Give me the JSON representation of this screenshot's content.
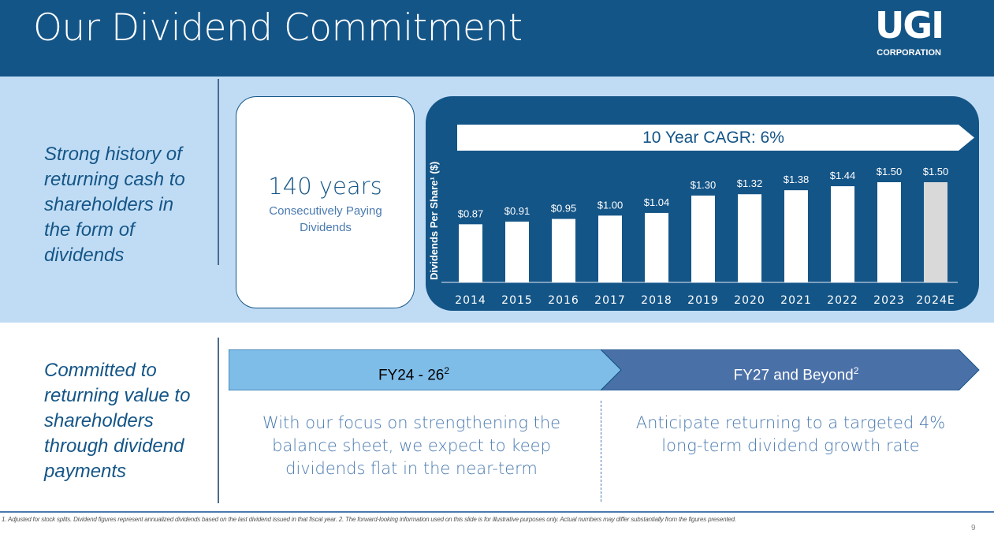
{
  "header": {
    "title": "Our Dividend Commitment",
    "logo_main": "UGI",
    "logo_sub": "CORPORATION"
  },
  "top_section": {
    "side_text": "Strong history of returning cash to shareholders in the form of dividends",
    "card": {
      "number": "140 years",
      "subtitle": "Consecutively Paying Dividends"
    },
    "cagr_label": "10 Year CAGR: 6%"
  },
  "bottom_section": {
    "side_text": "Committed to returning value to shareholders through dividend payments",
    "phase1": {
      "label": "FY24 - 26",
      "sup": "2",
      "description": "With our focus on strengthening the balance sheet, we expect to keep dividends flat in the near-term"
    },
    "phase2": {
      "label": "FY27 and Beyond",
      "sup": "2",
      "description": "Anticipate returning to a targeted 4% long-term dividend growth rate"
    }
  },
  "footnote": "1. Adjusted for stock splits. Dividend figures represent annualized dividends based on the last dividend issued in that fiscal year. 2. The forward-looking information used on this slide is for illustrative purposes only. Actual numbers may differ substantially from the figures presented.",
  "page_number": "9",
  "colors": {
    "brand": "#145587",
    "light": "#c0dcf4",
    "estimate_bar": "#d9d9d9",
    "phase1": "#7fbde9",
    "phase2": "#4a70a8"
  },
  "chart_data": {
    "type": "bar",
    "title": "10 Year CAGR: 6%",
    "ylabel": "Dividends Per Share¹ ($)",
    "xlabel": "",
    "categories": [
      "2014",
      "2015",
      "2016",
      "2017",
      "2018",
      "2019",
      "2020",
      "2021",
      "2022",
      "2023",
      "2024E"
    ],
    "values": [
      0.87,
      0.91,
      0.95,
      1.0,
      1.04,
      1.3,
      1.32,
      1.38,
      1.44,
      1.5,
      1.5
    ],
    "data_labels": [
      "$0.87",
      "$0.91",
      "$0.95",
      "$1.00",
      "$1.04",
      "$1.30",
      "$1.32",
      "$1.38",
      "$1.44",
      "$1.50",
      "$1.50"
    ],
    "estimated": [
      false,
      false,
      false,
      false,
      false,
      false,
      false,
      false,
      false,
      false,
      true
    ],
    "ylim": [
      0,
      1.5
    ],
    "grid": false
  }
}
